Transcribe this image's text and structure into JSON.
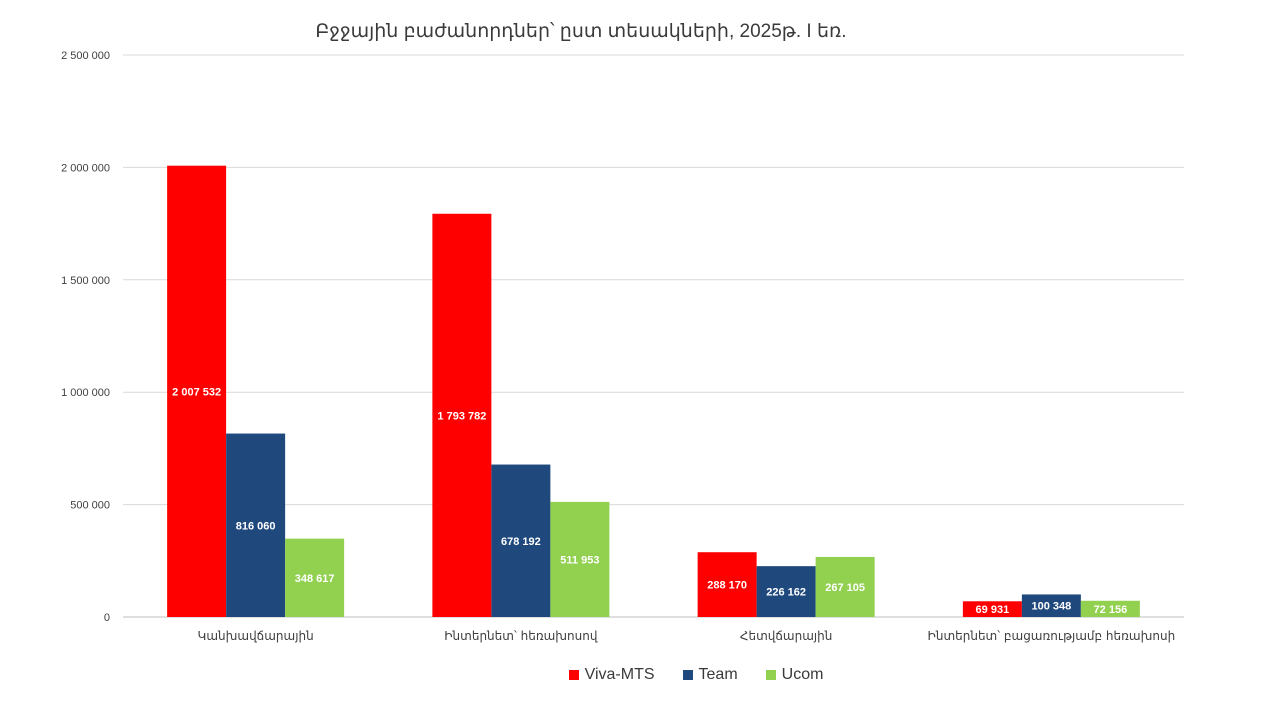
{
  "chart_data": {
    "type": "bar",
    "title": "Բջջային բաժանորդներ՝ ըստ տեսակների, 2025թ. I եռ.",
    "categories": [
      "Կանխավճարային",
      "Ինտերնետ՝ հեռախոսով",
      "Հետվճարային",
      "Ինտերնետ՝ բացառությամբ հեռախոսի"
    ],
    "series": [
      {
        "name": "Viva-MTS",
        "color": "#ff0000",
        "values": [
          2007532,
          1793782,
          288170,
          69931
        ],
        "labels": [
          "2 007 532",
          "1 793 782",
          "288 170",
          "69 931"
        ]
      },
      {
        "name": "Team",
        "color": "#1f497d",
        "values": [
          816060,
          678192,
          226162,
          100348
        ],
        "labels": [
          "816 060",
          "678 192",
          "226 162",
          "100 348"
        ]
      },
      {
        "name": "Ucom",
        "color": "#92d050",
        "values": [
          348617,
          511953,
          267105,
          72156
        ],
        "labels": [
          "348 617",
          "511 953",
          "267 105",
          "72 156"
        ]
      }
    ],
    "y_ticks": [
      0,
      500000,
      1000000,
      1500000,
      2000000,
      2500000
    ],
    "y_tick_labels": [
      "0",
      "500 000",
      "1 000 000",
      "1 500 000",
      "2 000 000",
      "2 500 000"
    ],
    "ylim": [
      0,
      2500000
    ],
    "grid": true,
    "legend_position": "bottom"
  }
}
